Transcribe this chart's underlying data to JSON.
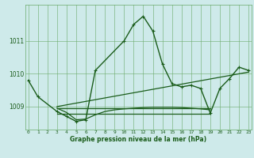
{
  "main_line": {
    "x": [
      0,
      1,
      3,
      4,
      5,
      6,
      7,
      10,
      11,
      12,
      13,
      14,
      15,
      16,
      17,
      18,
      19,
      20,
      21,
      22,
      23
    ],
    "y": [
      1009.8,
      1009.3,
      1008.85,
      1008.7,
      1008.55,
      1008.6,
      1010.1,
      1011.0,
      1011.5,
      1011.75,
      1011.3,
      1010.3,
      1009.7,
      1009.6,
      1009.65,
      1009.55,
      1008.8,
      1009.55,
      1009.85,
      1010.2,
      1010.1
    ]
  },
  "diag_line": {
    "x": [
      3,
      23
    ],
    "y": [
      1009.0,
      1010.05
    ]
  },
  "flat_line1": {
    "x": [
      3,
      19
    ],
    "y": [
      1008.95,
      1008.95
    ]
  },
  "flat_line2": {
    "x": [
      3,
      19
    ],
    "y": [
      1008.78,
      1008.78
    ]
  },
  "curve_line": {
    "x": [
      3,
      4,
      5,
      6,
      7,
      8,
      9,
      10,
      11,
      12,
      13,
      14,
      15,
      16,
      17,
      18,
      19
    ],
    "y": [
      1008.95,
      1008.82,
      1008.6,
      1008.62,
      1008.75,
      1008.85,
      1008.9,
      1008.93,
      1008.95,
      1008.97,
      1008.98,
      1008.98,
      1008.98,
      1008.97,
      1008.95,
      1008.93,
      1008.9
    ]
  },
  "xlim": [
    -0.3,
    23.3
  ],
  "ylim": [
    1008.3,
    1012.1
  ],
  "yticks": [
    1009,
    1010,
    1011
  ],
  "xticks": [
    0,
    1,
    2,
    3,
    4,
    5,
    6,
    7,
    8,
    9,
    10,
    11,
    12,
    13,
    14,
    15,
    16,
    17,
    18,
    19,
    20,
    21,
    22,
    23
  ],
  "xlabel": "Graphe pression niveau de la mer (hPa)",
  "bg_color": "#ceeaea",
  "grid_color": "#6aaa6a",
  "line_color": "#1a5c1a"
}
